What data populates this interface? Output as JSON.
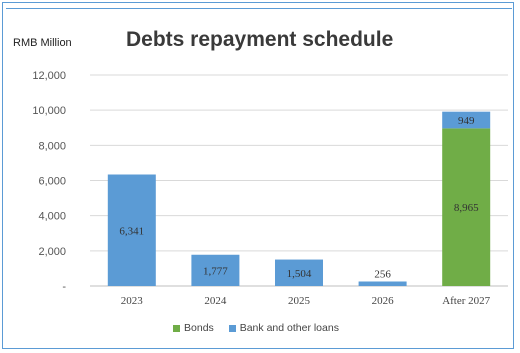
{
  "chart_data": {
    "type": "bar",
    "stacked": true,
    "title": "Debts repayment schedule",
    "unit_label": "RMB Million",
    "categories": [
      "2023",
      "2024",
      "2025",
      "2026",
      "After 2027"
    ],
    "series": [
      {
        "name": "Bonds",
        "color": "#70ad47",
        "values": [
          0,
          0,
          0,
          0,
          8965
        ]
      },
      {
        "name": "Bank and other loans",
        "color": "#5b9bd5",
        "values": [
          6341,
          1777,
          1504,
          256,
          949
        ]
      }
    ],
    "data_labels": [
      {
        "category": "2023",
        "series": "Bank and other loans",
        "text": "6,341"
      },
      {
        "category": "2024",
        "series": "Bank and other loans",
        "text": "1,777"
      },
      {
        "category": "2025",
        "series": "Bank and other loans",
        "text": "1,504"
      },
      {
        "category": "2026",
        "series": "Bank and other loans",
        "text": "256"
      },
      {
        "category": "After 2027",
        "series": "Bonds",
        "text": "8,965"
      },
      {
        "category": "After 2027",
        "series": "Bank and other loans",
        "text": "949"
      }
    ],
    "ylim": [
      0,
      12000
    ],
    "yticks": [
      0,
      2000,
      4000,
      6000,
      8000,
      10000,
      12000
    ],
    "ytick_labels": [
      "-",
      "2,000",
      "4,000",
      "6,000",
      "8,000",
      "10,000",
      "12,000"
    ],
    "grid": true,
    "legend_position": "bottom"
  }
}
